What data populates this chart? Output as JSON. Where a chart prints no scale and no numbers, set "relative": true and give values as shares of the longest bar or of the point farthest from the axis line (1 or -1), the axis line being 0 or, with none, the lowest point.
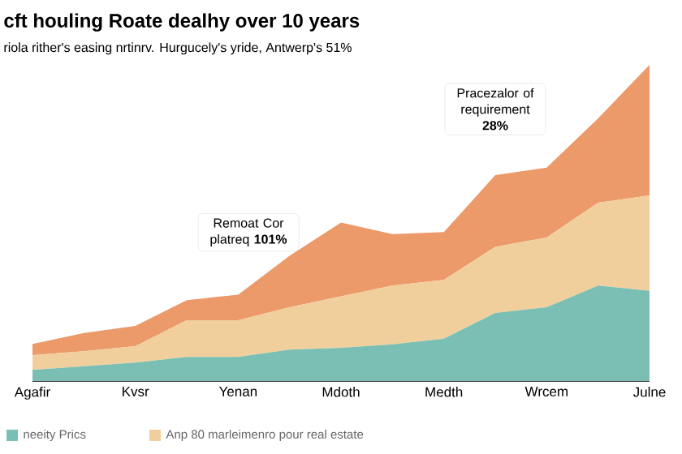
{
  "chart_data": {
    "type": "area",
    "title": "cft houling Roate dealhy over 10 years",
    "subtitle": "riola rither's easing nrtinrv. Hurgucely's yride, Antwerp's 51%",
    "categories": [
      "Agafir",
      null,
      "Kvsr",
      null,
      "Yenan",
      null,
      "Mdoth",
      null,
      "Medth",
      null,
      "Wrcem",
      null,
      "Julne"
    ],
    "stacked": true,
    "relative": true,
    "legend": "bottom",
    "series": [
      {
        "name": "neeity Prics",
        "color": "#7bbfb4",
        "values": [
          0.035,
          0.047,
          0.058,
          0.076,
          0.076,
          0.099,
          0.105,
          0.116,
          0.134,
          0.215,
          0.233,
          0.302,
          0.285
        ]
      },
      {
        "name": "Anp 80 marleimenro pour real estate",
        "color": "#f1cf9c",
        "values": [
          0.047,
          0.047,
          0.052,
          0.116,
          0.116,
          0.134,
          0.163,
          0.186,
          0.186,
          0.209,
          0.221,
          0.262,
          0.302
        ]
      },
      {
        "color": "#ec9a6a",
        "values": [
          0.035,
          0.058,
          0.064,
          0.064,
          0.081,
          0.163,
          0.233,
          0.163,
          0.151,
          0.227,
          0.221,
          0.267,
          0.413
        ]
      }
    ],
    "annotations": [
      "Remoat Cor platreq **101%**",
      "Pracezalor of requirement **28%**"
    ]
  }
}
